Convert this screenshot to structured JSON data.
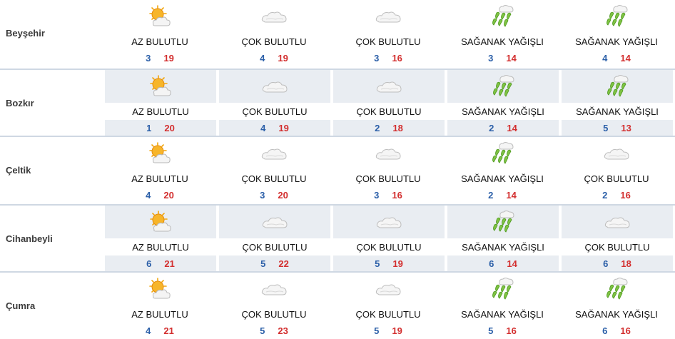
{
  "colors": {
    "min_temp": "#2b5fa8",
    "max_temp": "#d32f2f",
    "alt_row_band": "#e9edf2"
  },
  "rows": [
    {
      "city": "Beyşehir",
      "days": [
        {
          "icon": "sun-cloud-icon",
          "condition": "AZ BULUTLU",
          "min": "3",
          "max": "19"
        },
        {
          "icon": "cloud-icon",
          "condition": "ÇOK BULUTLU",
          "min": "4",
          "max": "19"
        },
        {
          "icon": "cloud-icon",
          "condition": "ÇOK BULUTLU",
          "min": "3",
          "max": "16"
        },
        {
          "icon": "rain-shower-icon",
          "condition": "SAĞANAK YAĞIŞLI",
          "min": "3",
          "max": "14"
        },
        {
          "icon": "rain-shower-icon",
          "condition": "SAĞANAK YAĞIŞLI",
          "min": "4",
          "max": "14"
        }
      ]
    },
    {
      "city": "Bozkır",
      "days": [
        {
          "icon": "sun-cloud-icon",
          "condition": "AZ BULUTLU",
          "min": "1",
          "max": "20"
        },
        {
          "icon": "cloud-icon",
          "condition": "ÇOK BULUTLU",
          "min": "4",
          "max": "19"
        },
        {
          "icon": "cloud-icon",
          "condition": "ÇOK BULUTLU",
          "min": "2",
          "max": "18"
        },
        {
          "icon": "rain-shower-icon",
          "condition": "SAĞANAK YAĞIŞLI",
          "min": "2",
          "max": "14"
        },
        {
          "icon": "rain-shower-icon",
          "condition": "SAĞANAK YAĞIŞLI",
          "min": "5",
          "max": "13"
        }
      ]
    },
    {
      "city": "Çeltik",
      "days": [
        {
          "icon": "sun-cloud-icon",
          "condition": "AZ BULUTLU",
          "min": "4",
          "max": "20"
        },
        {
          "icon": "cloud-icon",
          "condition": "ÇOK BULUTLU",
          "min": "3",
          "max": "20"
        },
        {
          "icon": "cloud-icon",
          "condition": "ÇOK BULUTLU",
          "min": "3",
          "max": "16"
        },
        {
          "icon": "rain-shower-icon",
          "condition": "SAĞANAK YAĞIŞLI",
          "min": "2",
          "max": "14"
        },
        {
          "icon": "cloud-icon",
          "condition": "ÇOK BULUTLU",
          "min": "2",
          "max": "16"
        }
      ]
    },
    {
      "city": "Cihanbeyli",
      "days": [
        {
          "icon": "sun-cloud-icon",
          "condition": "AZ BULUTLU",
          "min": "6",
          "max": "21"
        },
        {
          "icon": "cloud-icon",
          "condition": "ÇOK BULUTLU",
          "min": "5",
          "max": "22"
        },
        {
          "icon": "cloud-icon",
          "condition": "ÇOK BULUTLU",
          "min": "5",
          "max": "19"
        },
        {
          "icon": "rain-shower-icon",
          "condition": "SAĞANAK YAĞIŞLI",
          "min": "6",
          "max": "14"
        },
        {
          "icon": "cloud-icon",
          "condition": "ÇOK BULUTLU",
          "min": "6",
          "max": "18"
        }
      ]
    },
    {
      "city": "Çumra",
      "days": [
        {
          "icon": "sun-cloud-icon",
          "condition": "AZ BULUTLU",
          "min": "4",
          "max": "21"
        },
        {
          "icon": "cloud-icon",
          "condition": "ÇOK BULUTLU",
          "min": "5",
          "max": "23"
        },
        {
          "icon": "cloud-icon",
          "condition": "ÇOK BULUTLU",
          "min": "5",
          "max": "19"
        },
        {
          "icon": "rain-shower-icon",
          "condition": "SAĞANAK YAĞIŞLI",
          "min": "5",
          "max": "16"
        },
        {
          "icon": "rain-shower-icon",
          "condition": "SAĞANAK YAĞIŞLI",
          "min": "6",
          "max": "16"
        }
      ]
    }
  ]
}
